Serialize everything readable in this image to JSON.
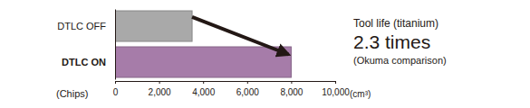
{
  "chart_data": {
    "type": "bar",
    "orientation": "horizontal",
    "categories": [
      "DTLC OFF",
      "DTLC ON"
    ],
    "values": [
      3500,
      8000
    ],
    "colors": [
      "#a9a9a9",
      "#a67ca9"
    ],
    "xlim": [
      0,
      10000
    ],
    "xticks": [
      0,
      {
        "value": 2000,
        "label": "2,000"
      },
      {
        "value": 4000,
        "label": "4,000"
      },
      {
        "value": 6000,
        "label": "6,000"
      },
      {
        "value": 8000,
        "label": "8,000"
      },
      {
        "value": 10000,
        "label": "10,000"
      }
    ],
    "xlabel": "(Chips)",
    "xunit": "(cm³)",
    "annotations": [
      "Tool life (titanium)",
      "2.3 times",
      "(Okuma comparison)"
    ]
  }
}
